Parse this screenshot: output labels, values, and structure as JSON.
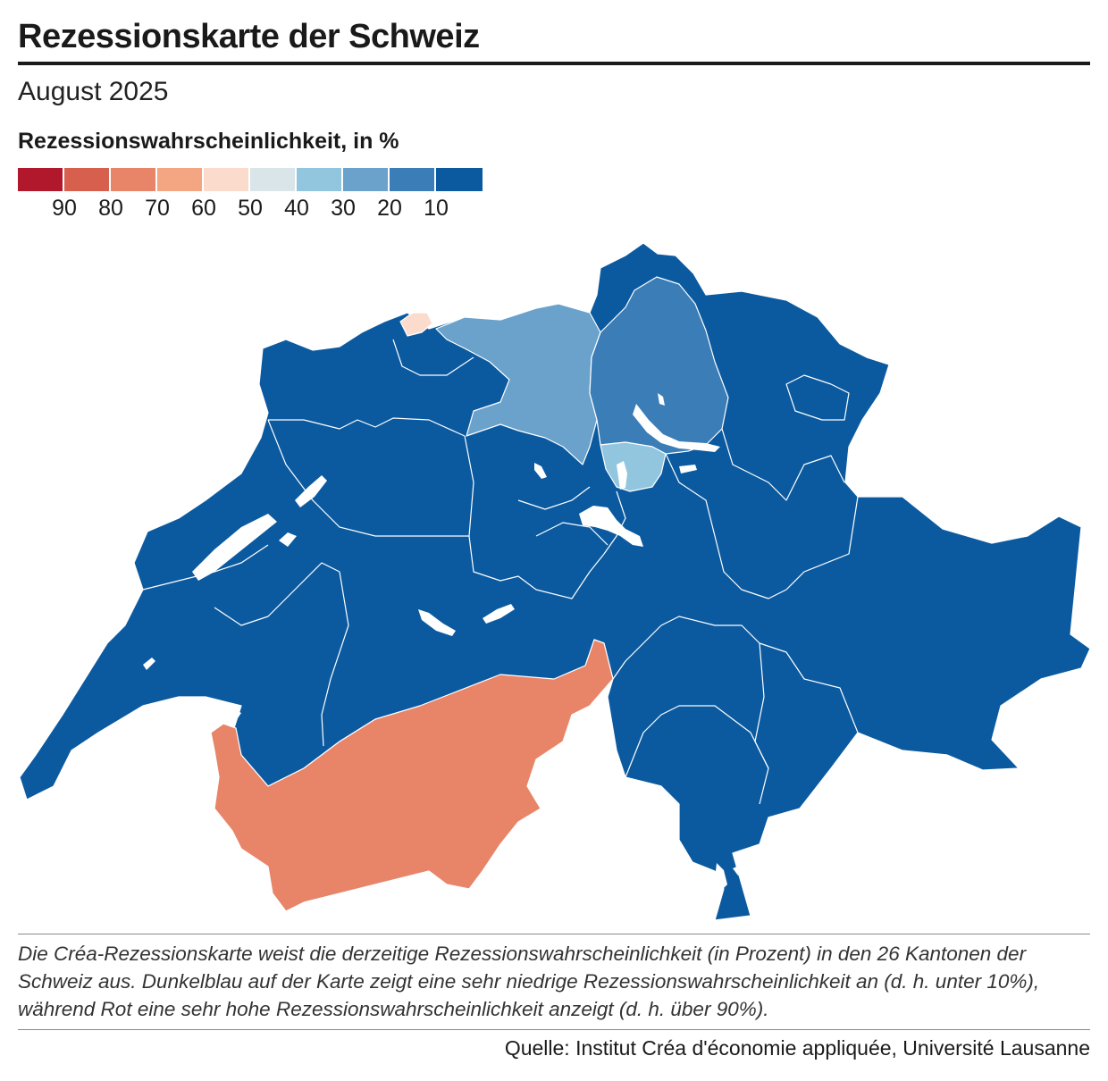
{
  "title": "Rezessionskarte der Schweiz",
  "subtitle": "August 2025",
  "legend": {
    "title": "Rezessionswahrscheinlichkeit, in %",
    "colors": [
      "#b2182b",
      "#d6604d",
      "#e88468",
      "#f4a582",
      "#fbdccc",
      "#d9e5e8",
      "#92c5de",
      "#6aa2cb",
      "#3b7db7",
      "#0b5aa0"
    ],
    "labels": [
      "90",
      "80",
      "70",
      "60",
      "50",
      "40",
      "30",
      "20",
      "10"
    ]
  },
  "map": {
    "colors": {
      "very_low": "#0b5aa0",
      "zurich": "#3b7db7",
      "aargau": "#6aa2cb",
      "zug": "#92c5de",
      "valais": "#e88468",
      "basel_stadt": "#fbdccc"
    }
  },
  "note": "Die Créa-Rezessionskarte weist die derzeitige Rezessionswahrscheinlichkeit (in Prozent) in den 26 Kantonen der Schweiz aus. Dunkelblau auf der Karte zeigt eine sehr niedrige Rezessionswahrscheinlichkeit an (d. h. unter 10%), während Rot eine sehr hohe Rezessionswahrscheinlichkeit anzeigt (d. h. über 90%).",
  "source": "Quelle: Institut Créa d'économie appliquée, Université Lausanne"
}
